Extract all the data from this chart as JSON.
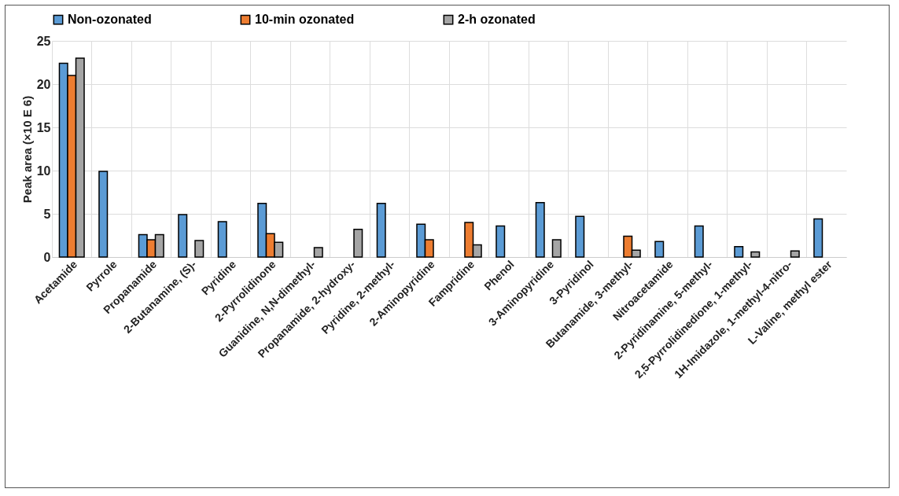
{
  "chart_data": {
    "type": "bar",
    "ylabel": "Peak area (×10 E 6)",
    "categories": [
      "Acetamide",
      "Pyrrole",
      "Propanamide",
      "2-Butanamine, (S)-",
      "Pyridine",
      "2-Pyrrolidinone",
      "Guanidine, N,N-dimethyl-",
      "Propanamide, 2-hydroxy-",
      "Pyridine, 2-methyl-",
      "2-Aminopyridine",
      "Fampridine",
      "Phenol",
      "3-Aminopyridine",
      "3-Pyridinol",
      "Butanamide, 3-methyl-",
      "Nitroacetamide",
      "2-Pyridinamine, 5-methyl-",
      "2,5-Pyrrolidinedione, 1-methyl-",
      "1H-Imidazole, 1-methyl-4-nitro-",
      "L-Valine, methyl ester"
    ],
    "series": [
      {
        "name": "Non-ozonated",
        "color": "#5b9bd5",
        "values": [
          22.4,
          9.9,
          2.6,
          4.9,
          4.1,
          6.2,
          null,
          null,
          6.2,
          3.8,
          null,
          3.6,
          6.3,
          4.7,
          null,
          1.8,
          3.6,
          1.2,
          null,
          4.4
        ]
      },
      {
        "name": "10-min ozonated",
        "color": "#ed7d31",
        "values": [
          21.0,
          null,
          2.0,
          null,
          null,
          2.7,
          null,
          null,
          null,
          2.0,
          4.0,
          null,
          null,
          null,
          2.4,
          null,
          null,
          null,
          null,
          null
        ]
      },
      {
        "name": "2-h ozonated",
        "color": "#a5a5a5",
        "values": [
          23.0,
          null,
          2.6,
          1.9,
          null,
          1.7,
          1.1,
          3.2,
          null,
          null,
          1.4,
          null,
          2.0,
          null,
          0.8,
          null,
          null,
          0.6,
          0.7,
          null
        ]
      }
    ],
    "ylim": [
      0,
      25
    ],
    "yticks": [
      0,
      5,
      10,
      15,
      20,
      25
    ],
    "grid": true,
    "legend": "top"
  }
}
